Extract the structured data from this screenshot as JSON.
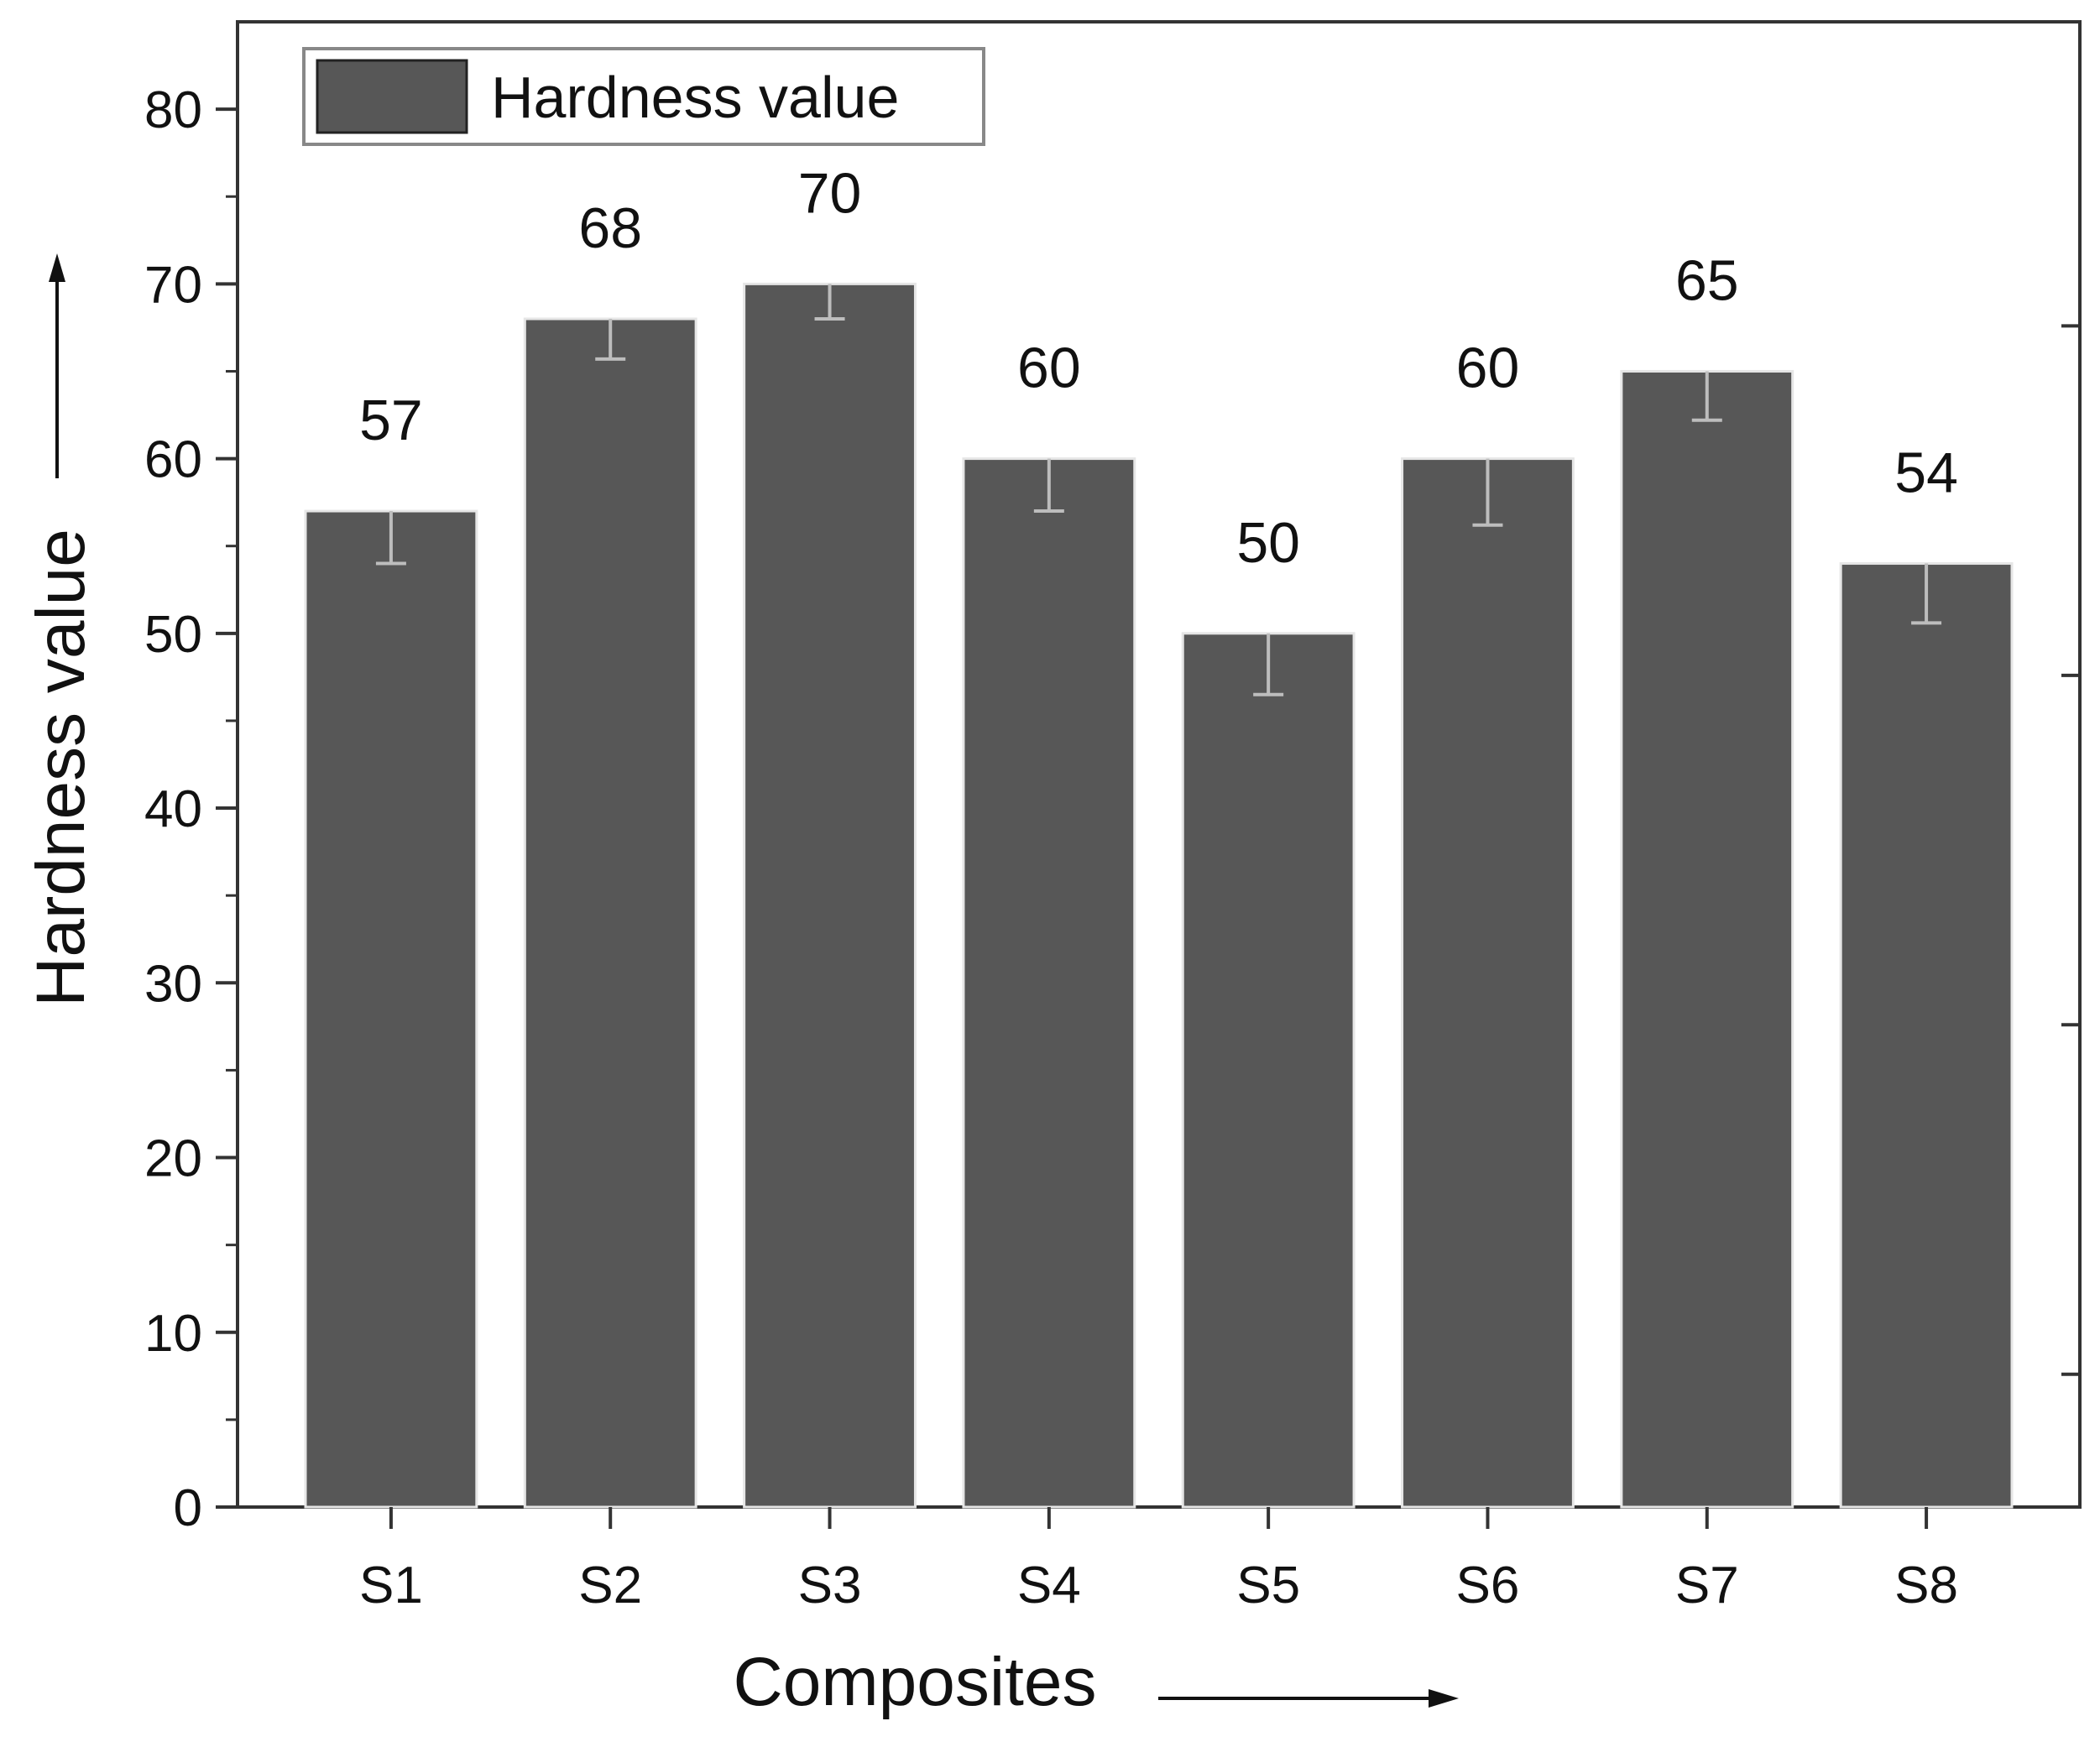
{
  "chart_data": {
    "type": "bar",
    "categories": [
      "S1",
      "S2",
      "S3",
      "S4",
      "S5",
      "S6",
      "S7",
      "S8"
    ],
    "series": [
      {
        "name": "Hardness value",
        "values": [
          57,
          68,
          70,
          60,
          50,
          60,
          65,
          54
        ],
        "error_low": [
          3,
          2.3,
          2,
          3,
          3.5,
          3.8,
          2.8,
          3.4
        ],
        "error_high": [
          0,
          0,
          0,
          0,
          0,
          0,
          0,
          0
        ],
        "color": "#575757"
      }
    ],
    "data_labels": [
      "57",
      "68",
      "70",
      "60",
      "50",
      "60",
      "65",
      "54"
    ],
    "xlabel": "Composites",
    "ylabel": "Hardness value",
    "ylim": [
      0,
      85
    ],
    "yticks": [
      0,
      10,
      20,
      30,
      40,
      50,
      60,
      70,
      80
    ],
    "legend": {
      "position": "top-left",
      "label": "Hardness value"
    },
    "grid": false,
    "error_bar_color": "#bdbdbd"
  }
}
